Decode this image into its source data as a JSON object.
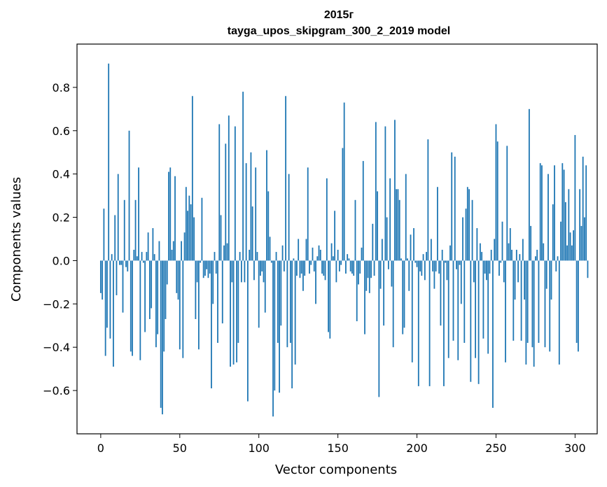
{
  "chart_data": {
    "type": "bar",
    "title_line1": "2015г",
    "title_line2": "tayga_upos_skipgram_300_2_2019 model",
    "xlabel": "Vector components",
    "ylabel": "Components values",
    "xlim": [
      -15,
      314
    ],
    "ylim": [
      -0.8,
      1.0
    ],
    "xticks": [
      0,
      50,
      100,
      150,
      200,
      250,
      300
    ],
    "xtick_labels": [
      "0",
      "50",
      "100",
      "150",
      "200",
      "250",
      "300"
    ],
    "yticks": [
      -0.6,
      -0.4,
      -0.2,
      0.0,
      0.2,
      0.4,
      0.6,
      0.8
    ],
    "ytick_labels": [
      "−0.6",
      "−0.4",
      "−0.2",
      "0.0",
      "0.2",
      "0.4",
      "0.6",
      "0.8"
    ],
    "bar_color": "#1f77b4",
    "values": [
      -0.15,
      -0.18,
      0.24,
      -0.44,
      -0.31,
      0.91,
      -0.36,
      0.03,
      -0.49,
      0.21,
      -0.16,
      0.4,
      -0.02,
      -0.02,
      -0.24,
      0.28,
      -0.03,
      -0.05,
      0.6,
      -0.42,
      -0.44,
      0.05,
      0.28,
      0.02,
      0.43,
      -0.46,
      0.04,
      -0.01,
      -0.33,
      0.04,
      0.13,
      -0.27,
      -0.22,
      0.15,
      0.03,
      -0.4,
      -0.34,
      0.09,
      -0.68,
      -0.71,
      -0.42,
      -0.27,
      -0.11,
      0.41,
      0.43,
      0.05,
      0.09,
      0.39,
      -0.15,
      -0.18,
      -0.41,
      0.09,
      -0.45,
      0.13,
      0.34,
      0.23,
      0.3,
      0.26,
      0.76,
      0.2,
      -0.27,
      -0.1,
      -0.41,
      -0.01,
      0.29,
      -0.08,
      -0.07,
      -0.04,
      -0.08,
      -0.06,
      -0.59,
      -0.2,
      0.04,
      -0.06,
      -0.38,
      0.63,
      0.21,
      -0.29,
      0.07,
      0.54,
      0.08,
      0.67,
      -0.49,
      -0.1,
      -0.48,
      0.62,
      -0.47,
      -0.38,
      0.04,
      -0.1,
      0.78,
      -0.1,
      0.45,
      -0.65,
      0.05,
      0.5,
      0.25,
      -0.09,
      0.43,
      0.04,
      -0.31,
      -0.07,
      -0.05,
      -0.1,
      -0.24,
      0.51,
      0.32,
      0.11,
      -0.01,
      -0.72,
      -0.6,
      0.04,
      -0.38,
      -0.61,
      -0.3,
      0.07,
      -0.05,
      0.76,
      -0.4,
      0.4,
      -0.38,
      -0.59,
      0.01,
      -0.48,
      -0.07,
      0.1,
      -0.08,
      -0.06,
      -0.14,
      -0.07,
      0.1,
      0.43,
      -0.06,
      -0.02,
      0.06,
      -0.05,
      -0.2,
      0.02,
      0.07,
      0.05,
      -0.06,
      -0.07,
      -0.09,
      0.38,
      -0.33,
      -0.36,
      0.08,
      0.02,
      0.23,
      -0.1,
      0.05,
      -0.05,
      -0.02,
      0.52,
      0.73,
      -0.06,
      0.03,
      0.01,
      -0.05,
      -0.06,
      -0.07,
      0.28,
      -0.28,
      -0.11,
      -0.06,
      0.06,
      0.46,
      -0.34,
      -0.14,
      -0.08,
      -0.15,
      -0.08,
      0.17,
      -0.07,
      0.64,
      0.32,
      -0.63,
      -0.13,
      0.1,
      -0.3,
      0.62,
      0.2,
      -0.04,
      0.38,
      -0.12,
      -0.4,
      0.65,
      0.33,
      0.33,
      0.28,
      0.01,
      -0.34,
      -0.31,
      0.4,
      0.01,
      -0.14,
      0.12,
      -0.47,
      0.15,
      -0.01,
      -0.03,
      -0.58,
      -0.05,
      -0.07,
      0.03,
      -0.09,
      0.04,
      0.56,
      -0.58,
      0.1,
      -0.05,
      -0.13,
      -0.05,
      0.34,
      -0.06,
      -0.3,
      0.05,
      -0.58,
      -0.01,
      -0.09,
      -0.45,
      0.07,
      0.5,
      -0.37,
      0.48,
      -0.04,
      -0.46,
      -0.02,
      -0.2,
      0.2,
      -0.38,
      0.24,
      0.34,
      0.33,
      -0.56,
      0.28,
      -0.1,
      -0.45,
      0.15,
      -0.57,
      0.08,
      0.04,
      -0.36,
      -0.06,
      -0.09,
      -0.43,
      -0.06,
      0.05,
      -0.68,
      0.1,
      0.63,
      0.55,
      -0.07,
      -0.01,
      0.18,
      -0.1,
      -0.47,
      0.53,
      0.08,
      0.15,
      0.05,
      -0.37,
      -0.18,
      0.05,
      -0.1,
      0.03,
      -0.37,
      0.1,
      -0.18,
      -0.48,
      -0.38,
      0.7,
      0.16,
      -0.4,
      -0.49,
      0.02,
      0.05,
      -0.38,
      0.45,
      0.44,
      0.08,
      -0.4,
      -0.13,
      0.4,
      -0.42,
      -0.18,
      0.26,
      0.44,
      -0.05,
      0.02,
      -0.48,
      0.18,
      0.45,
      0.42,
      0.27,
      0.07,
      0.33,
      0.13,
      0.07,
      0.14,
      0.58,
      -0.38,
      -0.42,
      0.33,
      0.16,
      0.48,
      0.2,
      0.44,
      -0.08
    ]
  }
}
